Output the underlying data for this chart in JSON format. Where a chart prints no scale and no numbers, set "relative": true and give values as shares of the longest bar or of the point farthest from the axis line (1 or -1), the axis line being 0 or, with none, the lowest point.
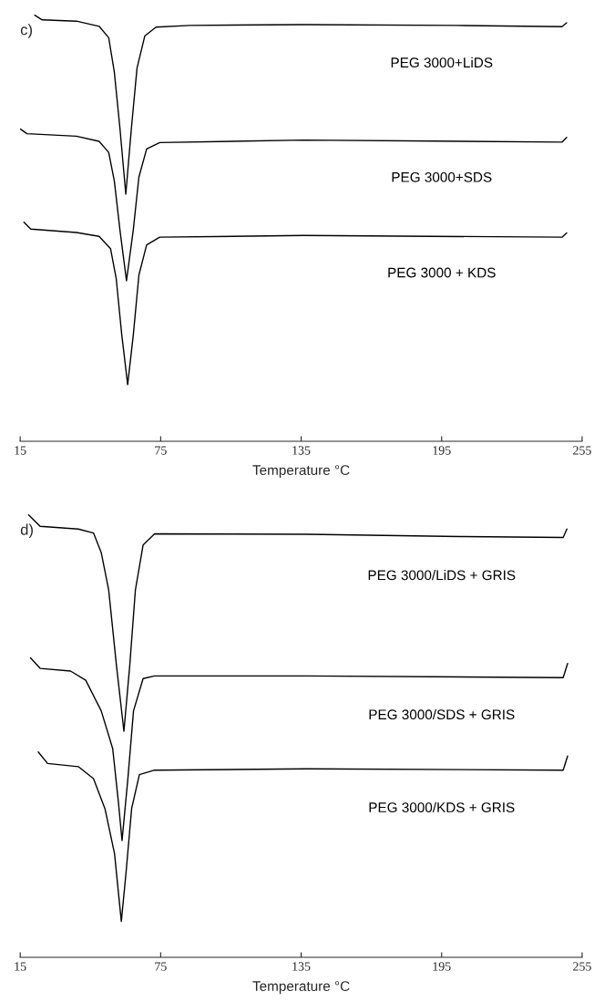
{
  "chart_data": [
    {
      "type": "line",
      "title": "c)",
      "xlabel": "Temperature °C",
      "relative": true,
      "xlim": [
        15,
        255
      ],
      "xticks": [
        15,
        75,
        135,
        195,
        255
      ],
      "grid": false,
      "series": [
        {
          "name": "PEG 3000+LiDS",
          "color": "#000000",
          "x": [
            21.2,
            24.4,
            39.0,
            48.7,
            52.8,
            55.2,
            57.6,
            60.1,
            62.5,
            64.9,
            68.2,
            73.0,
            87.6,
            136.2,
            201,
            246.4,
            248.4
          ],
          "values": [
            1.0,
            0.989,
            0.986,
            0.974,
            0.947,
            0.867,
            0.735,
            0.58,
            0.735,
            0.876,
            0.951,
            0.972,
            0.976,
            0.978,
            0.976,
            0.973,
            0.982
          ]
        },
        {
          "name": "PEG 3000+SDS",
          "color": "#000000",
          "x": [
            15,
            17.9,
            39.0,
            48.7,
            52.8,
            55.2,
            57.6,
            60.4,
            63.3,
            65.7,
            69.0,
            74.6,
            136.2,
            246.4,
            248.4
          ],
          "values": [
            0.733,
            0.722,
            0.716,
            0.704,
            0.678,
            0.611,
            0.496,
            0.377,
            0.496,
            0.62,
            0.686,
            0.701,
            0.707,
            0.702,
            0.713
          ]
        },
        {
          "name": "PEG 3000 + KDS",
          "color": "#000000",
          "x": [
            16.6,
            19.5,
            39.0,
            48.7,
            53.6,
            56.0,
            58.4,
            60.9,
            63.3,
            65.7,
            69.0,
            74.6,
            136.2,
            246.4,
            248.4
          ],
          "values": [
            0.514,
            0.498,
            0.49,
            0.481,
            0.452,
            0.382,
            0.249,
            0.133,
            0.249,
            0.39,
            0.461,
            0.479,
            0.483,
            0.479,
            0.489
          ]
        }
      ]
    },
    {
      "type": "line",
      "title": "d)",
      "xlabel": "Temperature °C",
      "relative": true,
      "xlim": [
        15,
        255
      ],
      "xticks": [
        15,
        75,
        135,
        195,
        255
      ],
      "grid": false,
      "series": [
        {
          "name": "PEG 3000/LiDS + GRIS",
          "color": "#000000",
          "x": [
            18.6,
            23.5,
            39.8,
            46.3,
            49.6,
            52.8,
            56.1,
            59.3,
            61.8,
            64.2,
            67.5,
            72.4,
            137.6,
            202.8,
            246.9,
            248.5
          ],
          "values": [
            1.0,
            0.974,
            0.968,
            0.959,
            0.915,
            0.83,
            0.66,
            0.511,
            0.66,
            0.83,
            0.932,
            0.957,
            0.956,
            0.951,
            0.949,
            0.968
          ]
        },
        {
          "name": "PEG 3000/SDS + GRIS",
          "color": "#000000",
          "x": [
            19.4,
            23.5,
            36.5,
            43.0,
            49.6,
            54.5,
            56.9,
            58.5,
            61.0,
            63.4,
            67.5,
            72.4,
            137.6,
            246.9,
            248.8
          ],
          "values": [
            0.677,
            0.653,
            0.647,
            0.626,
            0.557,
            0.472,
            0.353,
            0.264,
            0.404,
            0.557,
            0.63,
            0.636,
            0.636,
            0.632,
            0.664
          ]
        },
        {
          "name": "PEG 3000/KDS + GRIS",
          "color": "#000000",
          "x": [
            22.7,
            26.7,
            39.8,
            46.3,
            51.2,
            55.3,
            56.9,
            58.2,
            60.2,
            62.6,
            65.9,
            72.4,
            137.6,
            246.9,
            248.8
          ],
          "values": [
            0.464,
            0.438,
            0.431,
            0.404,
            0.336,
            0.234,
            0.149,
            0.081,
            0.191,
            0.336,
            0.413,
            0.423,
            0.426,
            0.423,
            0.455
          ]
        }
      ]
    }
  ]
}
